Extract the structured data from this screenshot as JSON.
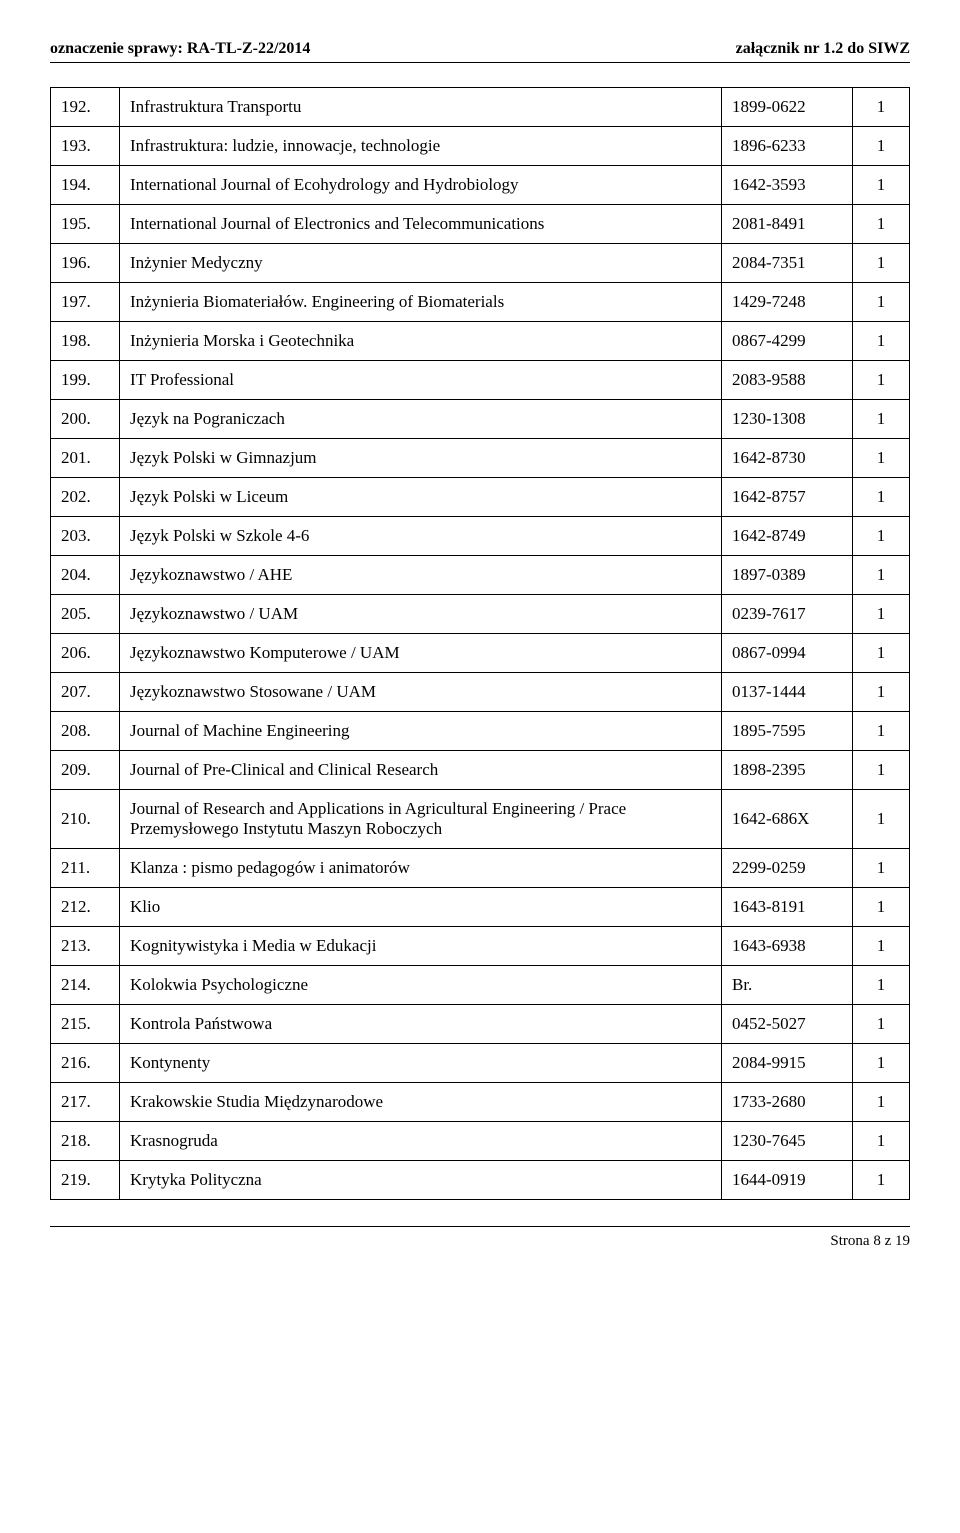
{
  "header": {
    "left": "oznaczenie sprawy: RA-TL-Z-22/2014",
    "right": "załącznik nr 1.2 do SIWZ"
  },
  "table": {
    "rows": [
      {
        "num": "192.",
        "title": "Infrastruktura Transportu",
        "issn": "1899-0622",
        "qty": "1"
      },
      {
        "num": "193.",
        "title": "Infrastruktura: ludzie, innowacje, technologie",
        "issn": "1896-6233",
        "qty": "1"
      },
      {
        "num": "194.",
        "title": "International Journal of Ecohydrology and Hydrobiology",
        "issn": "1642-3593",
        "qty": "1"
      },
      {
        "num": "195.",
        "title": "International Journal of Electronics and Telecommunications",
        "issn": "2081-8491",
        "qty": "1"
      },
      {
        "num": "196.",
        "title": "Inżynier Medyczny",
        "issn": "2084-7351",
        "qty": "1"
      },
      {
        "num": "197.",
        "title": "Inżynieria Biomateriałów. Engineering of Biomaterials",
        "issn": "1429-7248",
        "qty": "1"
      },
      {
        "num": "198.",
        "title": "Inżynieria Morska i Geotechnika",
        "issn": "0867-4299",
        "qty": "1"
      },
      {
        "num": "199.",
        "title": "IT Professional",
        "issn": "2083-9588",
        "qty": "1"
      },
      {
        "num": "200.",
        "title": "Język na Pograniczach",
        "issn": "1230-1308",
        "qty": "1"
      },
      {
        "num": "201.",
        "title": "Język Polski w Gimnazjum",
        "issn": "1642-8730",
        "qty": "1"
      },
      {
        "num": "202.",
        "title": "Język Polski w Liceum",
        "issn": "1642-8757",
        "qty": "1"
      },
      {
        "num": "203.",
        "title": "Język Polski w Szkole 4-6",
        "issn": "1642-8749",
        "qty": "1"
      },
      {
        "num": "204.",
        "title": "Językoznawstwo / AHE",
        "issn": "1897-0389",
        "qty": "1"
      },
      {
        "num": "205.",
        "title": "Językoznawstwo / UAM",
        "issn": "0239-7617",
        "qty": "1"
      },
      {
        "num": "206.",
        "title": "Językoznawstwo Komputerowe / UAM",
        "issn": "0867-0994",
        "qty": "1"
      },
      {
        "num": "207.",
        "title": "Językoznawstwo Stosowane / UAM",
        "issn": "0137-1444",
        "qty": "1"
      },
      {
        "num": "208.",
        "title": "Journal of Machine Engineering",
        "issn": "1895-7595",
        "qty": "1"
      },
      {
        "num": "209.",
        "title": "Journal of Pre-Clinical and Clinical Research",
        "issn": "1898-2395",
        "qty": "1"
      },
      {
        "num": "210.",
        "title": "Journal of Research and Applications in Agricultural Engineering / Prace Przemysłowego Instytutu Maszyn Roboczych",
        "issn": "1642-686X",
        "qty": "1"
      },
      {
        "num": "211.",
        "title": "Klanza : pismo pedagogów i animatorów",
        "issn": "2299-0259",
        "qty": "1"
      },
      {
        "num": "212.",
        "title": "Klio",
        "issn": "1643-8191",
        "qty": "1"
      },
      {
        "num": "213.",
        "title": "Kognitywistyka i Media w Edukacji",
        "issn": "1643-6938",
        "qty": "1"
      },
      {
        "num": "214.",
        "title": "Kolokwia Psychologiczne",
        "issn": "Br.",
        "qty": "1"
      },
      {
        "num": "215.",
        "title": "Kontrola Państwowa",
        "issn": "0452-5027",
        "qty": "1"
      },
      {
        "num": "216.",
        "title": "Kontynenty",
        "issn": "2084-9915",
        "qty": "1"
      },
      {
        "num": "217.",
        "title": "Krakowskie Studia Międzynarodowe",
        "issn": "1733-2680",
        "qty": "1"
      },
      {
        "num": "218.",
        "title": "Krasnogruda",
        "issn": "1230-7645",
        "qty": "1"
      },
      {
        "num": "219.",
        "title": "Krytyka Polityczna",
        "issn": "1644-0919",
        "qty": "1"
      }
    ]
  },
  "footer": {
    "text": "Strona 8 z 19"
  }
}
